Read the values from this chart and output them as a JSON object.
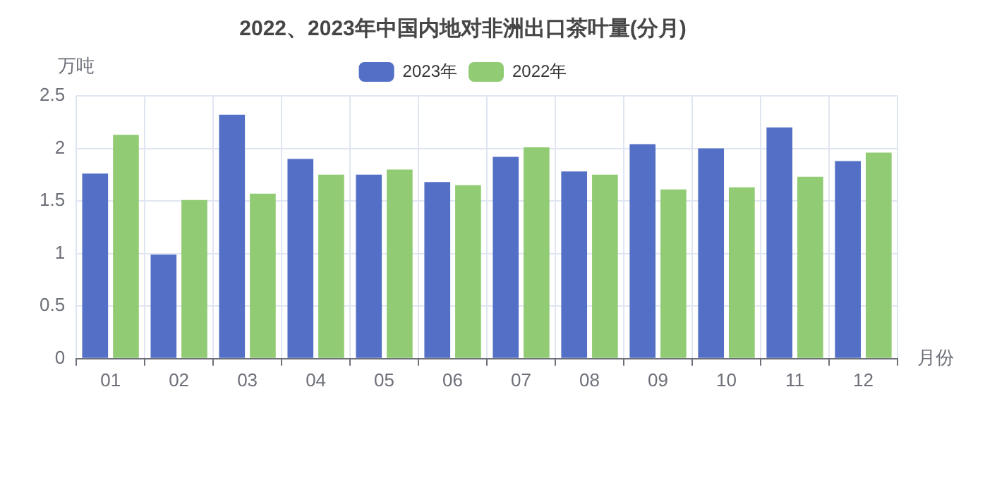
{
  "chart_data": {
    "type": "bar",
    "title": "2022、2023年中国内地对非洲出口茶叶量(分月)",
    "xlabel": "月份",
    "ylabel": "万吨",
    "categories": [
      "01",
      "02",
      "03",
      "04",
      "05",
      "06",
      "07",
      "08",
      "09",
      "10",
      "11",
      "12"
    ],
    "series": [
      {
        "name": "2023年",
        "color": "#5470c6",
        "values": [
          1.76,
          0.99,
          2.32,
          1.9,
          1.75,
          1.68,
          1.92,
          1.78,
          2.04,
          2.0,
          2.2,
          1.88
        ]
      },
      {
        "name": "2022年",
        "color": "#91cc75",
        "values": [
          2.13,
          1.51,
          1.57,
          1.75,
          1.8,
          1.65,
          2.01,
          1.75,
          1.61,
          1.63,
          1.73,
          1.96
        ]
      }
    ],
    "ylim": [
      0,
      2.5
    ],
    "yticks": [
      0,
      0.5,
      1,
      1.5,
      2,
      2.5
    ],
    "grid": true,
    "legend": "top"
  }
}
